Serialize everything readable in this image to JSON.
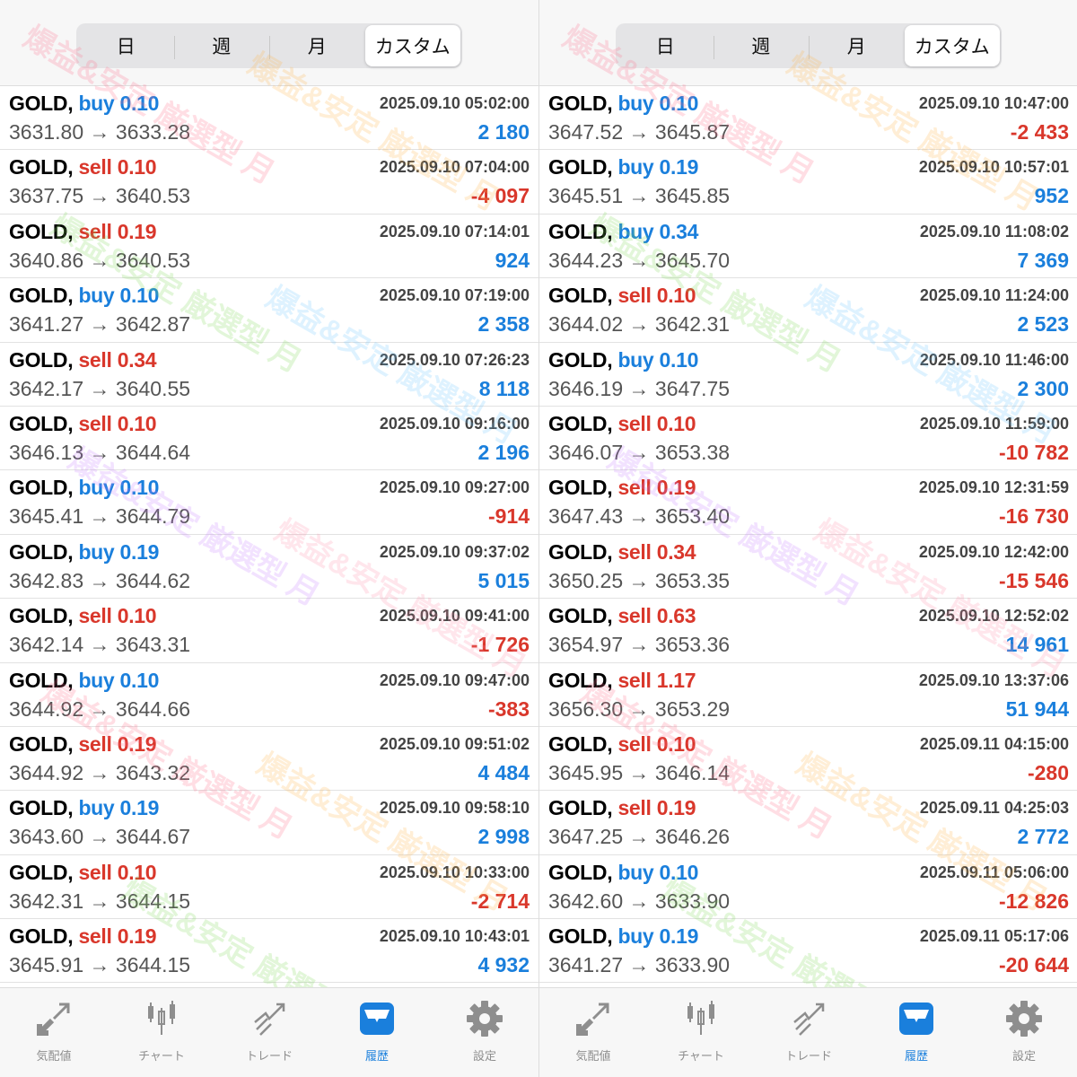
{
  "tabs": [
    "日",
    "週",
    "月",
    "カスタム"
  ],
  "active_tab": 3,
  "nav": [
    {
      "label": "気配値",
      "icon": "quotes-arrows-icon"
    },
    {
      "label": "チャート",
      "icon": "candlestick-chart-icon"
    },
    {
      "label": "トレード",
      "icon": "trade-trend-icon"
    },
    {
      "label": "履歴",
      "icon": "history-inbox-icon"
    },
    {
      "label": "設定",
      "icon": "settings-gear-icon"
    }
  ],
  "active_nav": 3,
  "watermark": "爆益&安定 厳選型 月",
  "colors": {
    "buy": "#1a7fdc",
    "sell": "#d9372b"
  },
  "panels": [
    {
      "rows": [
        {
          "symbol": "GOLD,",
          "side": "buy",
          "lot": "0.10",
          "open": "3631.80",
          "close": "3633.28",
          "time": "2025.09.10 05:02:00",
          "profit": "2 180"
        },
        {
          "symbol": "GOLD,",
          "side": "sell",
          "lot": "0.10",
          "open": "3637.75",
          "close": "3640.53",
          "time": "2025.09.10 07:04:00",
          "profit": "-4 097"
        },
        {
          "symbol": "GOLD,",
          "side": "sell",
          "lot": "0.19",
          "open": "3640.86",
          "close": "3640.53",
          "time": "2025.09.10 07:14:01",
          "profit": "924"
        },
        {
          "symbol": "GOLD,",
          "side": "buy",
          "lot": "0.10",
          "open": "3641.27",
          "close": "3642.87",
          "time": "2025.09.10 07:19:00",
          "profit": "2 358"
        },
        {
          "symbol": "GOLD,",
          "side": "sell",
          "lot": "0.34",
          "open": "3642.17",
          "close": "3640.55",
          "time": "2025.09.10 07:26:23",
          "profit": "8 118"
        },
        {
          "symbol": "GOLD,",
          "side": "sell",
          "lot": "0.10",
          "open": "3646.13",
          "close": "3644.64",
          "time": "2025.09.10 09:16:00",
          "profit": "2 196"
        },
        {
          "symbol": "GOLD,",
          "side": "buy",
          "lot": "0.10",
          "open": "3645.41",
          "close": "3644.79",
          "time": "2025.09.10 09:27:00",
          "profit": "-914"
        },
        {
          "symbol": "GOLD,",
          "side": "buy",
          "lot": "0.19",
          "open": "3642.83",
          "close": "3644.62",
          "time": "2025.09.10 09:37:02",
          "profit": "5 015"
        },
        {
          "symbol": "GOLD,",
          "side": "sell",
          "lot": "0.10",
          "open": "3642.14",
          "close": "3643.31",
          "time": "2025.09.10 09:41:00",
          "profit": "-1 726"
        },
        {
          "symbol": "GOLD,",
          "side": "buy",
          "lot": "0.10",
          "open": "3644.92",
          "close": "3644.66",
          "time": "2025.09.10 09:47:00",
          "profit": "-383"
        },
        {
          "symbol": "GOLD,",
          "side": "sell",
          "lot": "0.19",
          "open": "3644.92",
          "close": "3643.32",
          "time": "2025.09.10 09:51:02",
          "profit": "4 484"
        },
        {
          "symbol": "GOLD,",
          "side": "buy",
          "lot": "0.19",
          "open": "3643.60",
          "close": "3644.67",
          "time": "2025.09.10 09:58:10",
          "profit": "2 998"
        },
        {
          "symbol": "GOLD,",
          "side": "sell",
          "lot": "0.10",
          "open": "3642.31",
          "close": "3644.15",
          "time": "2025.09.10 10:33:00",
          "profit": "-2 714"
        },
        {
          "symbol": "GOLD,",
          "side": "sell",
          "lot": "0.19",
          "open": "3645.91",
          "close": "3644.15",
          "time": "2025.09.10 10:43:01",
          "profit": "4 932"
        }
      ]
    },
    {
      "rows": [
        {
          "symbol": "GOLD,",
          "side": "buy",
          "lot": "0.10",
          "open": "3647.52",
          "close": "3645.87",
          "time": "2025.09.10 10:47:00",
          "profit": "-2 433"
        },
        {
          "symbol": "GOLD,",
          "side": "buy",
          "lot": "0.19",
          "open": "3645.51",
          "close": "3645.85",
          "time": "2025.09.10 10:57:01",
          "profit": "952"
        },
        {
          "symbol": "GOLD,",
          "side": "buy",
          "lot": "0.34",
          "open": "3644.23",
          "close": "3645.70",
          "time": "2025.09.10 11:08:02",
          "profit": "7 369"
        },
        {
          "symbol": "GOLD,",
          "side": "sell",
          "lot": "0.10",
          "open": "3644.02",
          "close": "3642.31",
          "time": "2025.09.10 11:24:00",
          "profit": "2 523"
        },
        {
          "symbol": "GOLD,",
          "side": "buy",
          "lot": "0.10",
          "open": "3646.19",
          "close": "3647.75",
          "time": "2025.09.10 11:46:00",
          "profit": "2 300"
        },
        {
          "symbol": "GOLD,",
          "side": "sell",
          "lot": "0.10",
          "open": "3646.07",
          "close": "3653.38",
          "time": "2025.09.10 11:59:00",
          "profit": "-10 782"
        },
        {
          "symbol": "GOLD,",
          "side": "sell",
          "lot": "0.19",
          "open": "3647.43",
          "close": "3653.40",
          "time": "2025.09.10 12:31:59",
          "profit": "-16 730"
        },
        {
          "symbol": "GOLD,",
          "side": "sell",
          "lot": "0.34",
          "open": "3650.25",
          "close": "3653.35",
          "time": "2025.09.10 12:42:00",
          "profit": "-15 546"
        },
        {
          "symbol": "GOLD,",
          "side": "sell",
          "lot": "0.63",
          "open": "3654.97",
          "close": "3653.36",
          "time": "2025.09.10 12:52:02",
          "profit": "14 961"
        },
        {
          "symbol": "GOLD,",
          "side": "sell",
          "lot": "1.17",
          "open": "3656.30",
          "close": "3653.29",
          "time": "2025.09.10 13:37:06",
          "profit": "51 944"
        },
        {
          "symbol": "GOLD,",
          "side": "sell",
          "lot": "0.10",
          "open": "3645.95",
          "close": "3646.14",
          "time": "2025.09.11 04:15:00",
          "profit": "-280"
        },
        {
          "symbol": "GOLD,",
          "side": "sell",
          "lot": "0.19",
          "open": "3647.25",
          "close": "3646.26",
          "time": "2025.09.11 04:25:03",
          "profit": "2 772"
        },
        {
          "symbol": "GOLD,",
          "side": "buy",
          "lot": "0.10",
          "open": "3642.60",
          "close": "3633.90",
          "time": "2025.09.11 05:06:00",
          "profit": "-12 826"
        },
        {
          "symbol": "GOLD,",
          "side": "buy",
          "lot": "0.19",
          "open": "3641.27",
          "close": "3633.90",
          "time": "2025.09.11 05:17:06",
          "profit": "-20 644"
        }
      ]
    }
  ]
}
